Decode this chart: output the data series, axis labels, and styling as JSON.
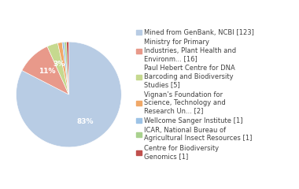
{
  "labels": [
    "Mined from GenBank, NCBI [123]",
    "Ministry for Primary\nIndustries, Plant Health and\nEnvironm... [16]",
    "Paul Hebert Centre for DNA\nBarcoding and Biodiversity\nStudies [5]",
    "Vignan’s Foundation for\nScience, Technology and\nResearch Un... [2]",
    "Wellcome Sanger Institute [1]",
    "ICAR, National Bureau of\nAgricultural Insect Resources [1]",
    "Centre for Biodiversity\nGenomics [1]"
  ],
  "values": [
    123,
    16,
    5,
    2,
    1,
    1,
    1
  ],
  "colors": [
    "#b8cce4",
    "#e8998a",
    "#c6d98f",
    "#f0a868",
    "#9dc3e6",
    "#a9d18e",
    "#c0504d"
  ],
  "background_color": "#ffffff",
  "text_color": "#404040",
  "fontsize": 6.0
}
